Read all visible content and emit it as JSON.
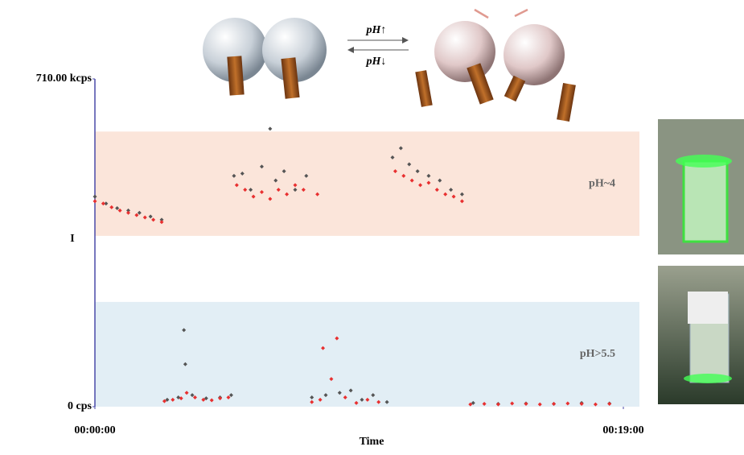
{
  "chart_data": {
    "type": "scatter",
    "y_label": "I",
    "x_label": "Time",
    "xlim": [
      0,
      19
    ],
    "xticks": [
      {
        "value": 0,
        "label": "00:00:00"
      },
      {
        "value": 19,
        "label": "00:19:00"
      }
    ],
    "ylim": [
      0,
      710
    ],
    "yticks": [
      {
        "value": 0,
        "label": "0 cps"
      },
      {
        "value": 710,
        "label": "710.00 kcps"
      }
    ],
    "bands": [
      {
        "label": "pH~4",
        "ylim": [
          370,
          596
        ],
        "color": "#fbe5da"
      },
      {
        "label": "pH>5.5",
        "ylim": [
          0,
          227
        ],
        "color": "#e2eef5"
      }
    ],
    "diagram": {
      "forward": "pH↑",
      "backward": "pH↓"
    },
    "series": [
      {
        "color": "#555555",
        "x": [
          0,
          0.4,
          0.8,
          1.2,
          1.6,
          2.0,
          2.4,
          2.6,
          3.0,
          3.2,
          3.25,
          3.5,
          4.0,
          4.5,
          4.9,
          5.0,
          5.3,
          5.6,
          6.0,
          6.3,
          6.5,
          6.8,
          7.2,
          7.6,
          7.8,
          8.3,
          8.8,
          9.2,
          9.6,
          10.0,
          10.5,
          10.7,
          11.0,
          11.3,
          11.6,
          12.0,
          12.4,
          12.8,
          13.2,
          13.6,
          14.5,
          15.5,
          16.5,
          17.5,
          18.5
        ],
        "values": [
          455,
          440,
          430,
          425,
          420,
          412,
          405,
          15,
          20,
          166,
          92,
          25,
          18,
          20,
          25,
          500,
          505,
          470,
          520,
          602,
          490,
          510,
          470,
          500,
          20,
          25,
          30,
          35,
          15,
          25,
          10,
          540,
          560,
          525,
          510,
          500,
          490,
          470,
          460,
          8,
          6,
          7,
          6,
          8,
          7
        ]
      },
      {
        "color": "#e83030",
        "x": [
          0,
          0.3,
          0.6,
          0.9,
          1.2,
          1.5,
          1.8,
          2.1,
          2.4,
          2.5,
          2.8,
          3.1,
          3.3,
          3.6,
          3.9,
          4.2,
          4.5,
          4.8,
          5.1,
          5.4,
          5.7,
          6.0,
          6.3,
          6.6,
          6.9,
          7.2,
          7.5,
          8.0,
          7.8,
          8.1,
          8.2,
          8.5,
          8.7,
          9.0,
          9.4,
          9.8,
          10.2,
          10.8,
          11.1,
          11.4,
          11.7,
          12.0,
          12.3,
          12.6,
          12.9,
          13.2,
          13.5,
          14,
          14.5,
          15,
          15.5,
          16,
          16.5,
          17,
          17.5,
          18,
          18.5
        ],
        "values": [
          445,
          440,
          432,
          425,
          420,
          415,
          410,
          405,
          400,
          12,
          15,
          18,
          30,
          20,
          15,
          14,
          18,
          20,
          480,
          470,
          455,
          465,
          450,
          470,
          460,
          480,
          470,
          460,
          10,
          15,
          127,
          60,
          148,
          20,
          8,
          15,
          10,
          510,
          500,
          490,
          480,
          485,
          470,
          460,
          455,
          445,
          5,
          6,
          5,
          7,
          6,
          5,
          6,
          7,
          6,
          5,
          6
        ]
      }
    ]
  }
}
